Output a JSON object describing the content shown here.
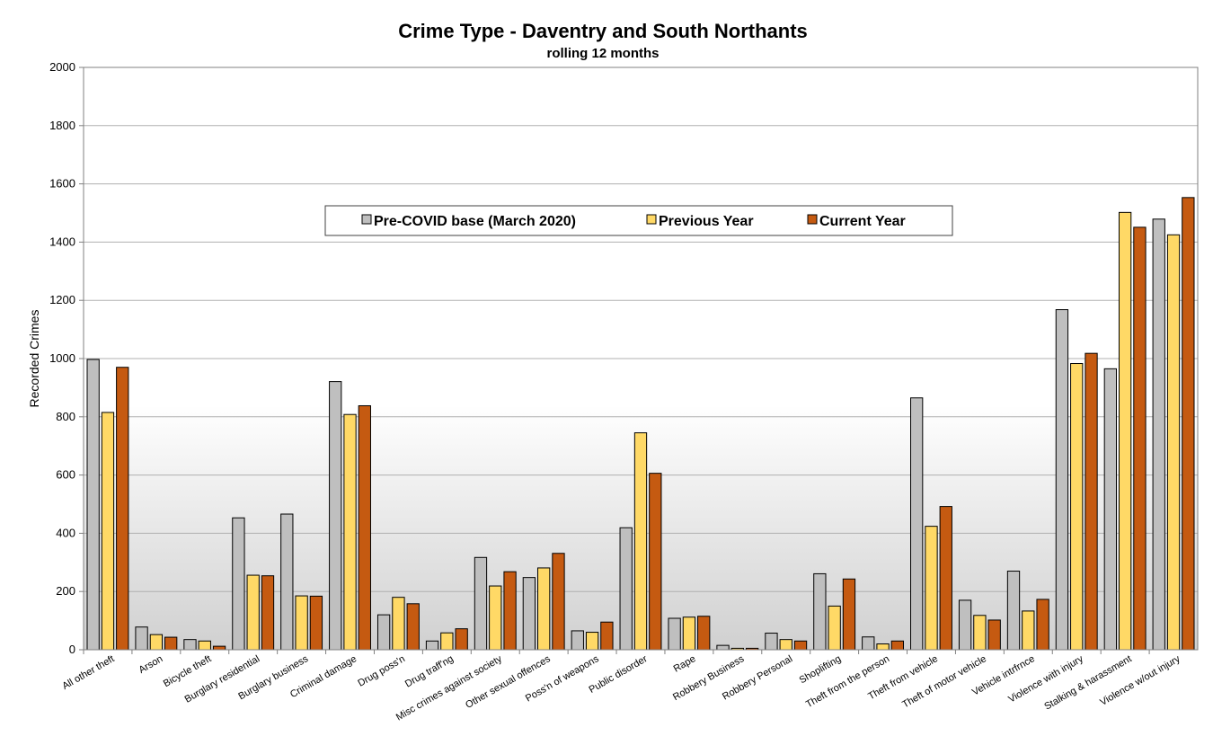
{
  "chart_data": {
    "type": "bar",
    "title": "Crime Type - Daventry and South Northants",
    "subtitle": "rolling 12 months",
    "ylabel": "Recorded Crimes",
    "xlabel": "",
    "ylim": [
      0,
      2000
    ],
    "yticks": [
      0,
      200,
      400,
      600,
      800,
      1000,
      1200,
      1400,
      1600,
      1800,
      2000
    ],
    "grid": true,
    "legend_position": "top-center",
    "categories": [
      "All other theft",
      "Arson",
      "Bicycle theft",
      "Burglary residential",
      "Burglary business",
      "Criminal damage",
      "Drug poss'n",
      "Drug traff'ng",
      "Misc crimes against society",
      "Other sexual offences",
      "Poss'n of weapons",
      "Public disorder",
      "Rape",
      "Robbery Business",
      "Robbery Personal",
      "Shoplifting",
      "Theft from the person",
      "Theft from vehicle",
      "Theft of motor vehicle",
      "Vehicle intrfrnce",
      "Violence with injury",
      "Stalking & harassment",
      "Violence w/out injury"
    ],
    "series": [
      {
        "name": "Pre-COVID base (March 2020)",
        "color": "#bfbfbf",
        "values": [
          997,
          78,
          35,
          453,
          466,
          921,
          120,
          30,
          317,
          248,
          65,
          419,
          108,
          15,
          57,
          261,
          44,
          865,
          170,
          270,
          1168,
          965,
          1479
        ]
      },
      {
        "name": "Previous Year",
        "color": "#ffd966",
        "values": [
          815,
          52,
          30,
          256,
          185,
          808,
          180,
          58,
          219,
          281,
          60,
          745,
          112,
          5,
          35,
          150,
          20,
          424,
          118,
          133,
          983,
          1502,
          1425
        ]
      },
      {
        "name": "Current Year",
        "color": "#c55a11",
        "values": [
          970,
          43,
          12,
          254,
          184,
          838,
          158,
          72,
          268,
          331,
          95,
          606,
          115,
          5,
          30,
          243,
          30,
          492,
          102,
          173,
          1018,
          1451,
          1553
        ]
      }
    ]
  }
}
